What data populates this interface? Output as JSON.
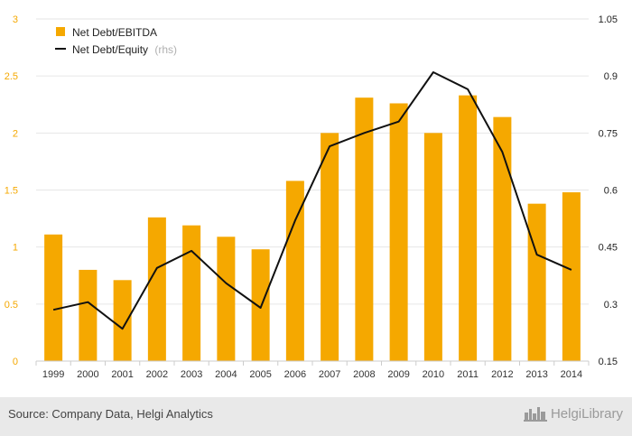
{
  "chart_data": {
    "type": "bar",
    "categories": [
      "1999",
      "2000",
      "2001",
      "2002",
      "2003",
      "2004",
      "2005",
      "2006",
      "2007",
      "2008",
      "2009",
      "2010",
      "2011",
      "2012",
      "2013",
      "2014"
    ],
    "series": [
      {
        "name": "Net Debt/EBITDA",
        "type": "bar",
        "axis": "left",
        "color": "#f5a800",
        "values": [
          1.11,
          0.8,
          0.71,
          1.26,
          1.19,
          1.09,
          0.98,
          1.58,
          2.0,
          2.31,
          2.26,
          2.0,
          2.33,
          2.14,
          1.38,
          1.48
        ]
      },
      {
        "name": "Net Debt/Equity",
        "name_suffix": "(rhs)",
        "type": "line",
        "axis": "right",
        "color": "#111111",
        "values": [
          0.285,
          0.305,
          0.235,
          0.395,
          0.44,
          0.355,
          0.29,
          0.52,
          0.715,
          0.75,
          0.78,
          0.91,
          0.865,
          0.7,
          0.43,
          0.39
        ]
      }
    ],
    "y_left": {
      "ticks": [
        "0",
        "0.5",
        "1",
        "1.5",
        "2",
        "2.5",
        "3"
      ],
      "ylim": [
        0,
        3
      ]
    },
    "y_right": {
      "ticks": [
        "0.15",
        "0.3",
        "0.45",
        "0.6",
        "0.75",
        "0.9",
        "1.05"
      ],
      "ylim": [
        0.15,
        1.05
      ]
    },
    "grid": "horizontal",
    "legend_position": "top-left"
  },
  "footer": {
    "source": "Source: Company Data, Helgi Analytics",
    "brand": "HelgiLibrary",
    "logo_icon": "city-skyline-icon"
  }
}
